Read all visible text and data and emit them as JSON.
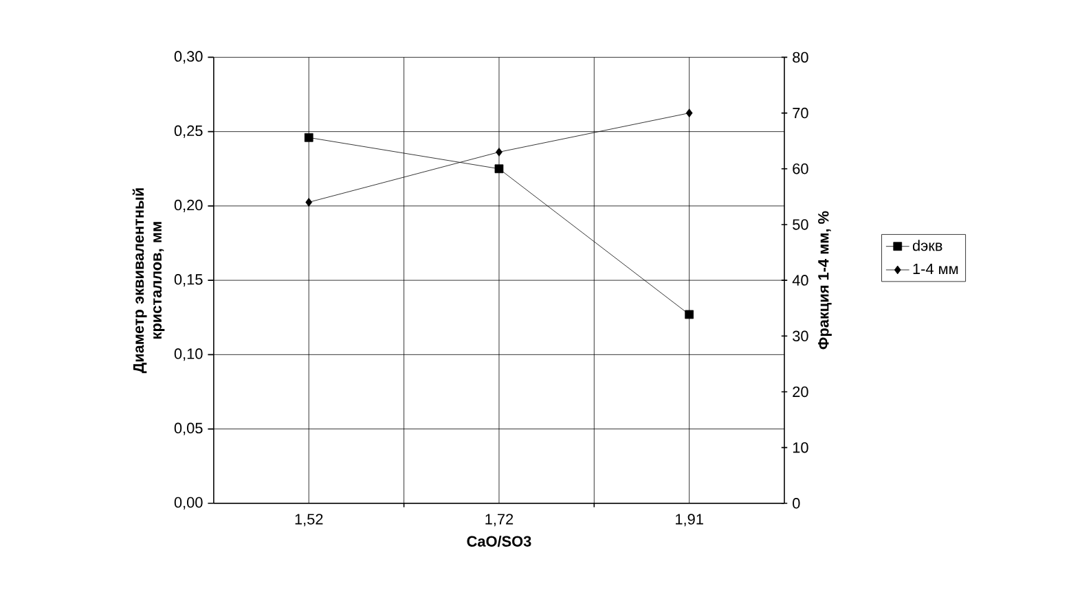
{
  "chart_data": {
    "type": "line",
    "xlabel": "CaO/SO3",
    "ylabel": "Диаметр эквивалентный кристаллов, мм",
    "y2label": "Фракция 1-4 мм, %",
    "categories": [
      "1,52",
      "1,72",
      "1,91"
    ],
    "series": [
      {
        "name": "dэкв",
        "color": "#000000",
        "marker": "square",
        "values": [
          0.246,
          0.225,
          0.127
        ]
      },
      {
        "name": "1-4 мм",
        "color": "#000000",
        "marker": "diamond",
        "axis": "y2",
        "values": [
          54,
          63,
          70
        ]
      }
    ],
    "ylim": [
      0,
      0.3
    ],
    "yticks": [
      {
        "value": 0,
        "label": "0,00"
      },
      {
        "value": 0.05,
        "label": "0,05"
      },
      {
        "value": 0.1,
        "label": "0,10"
      },
      {
        "value": 0.15,
        "label": "0,15"
      },
      {
        "value": 0.2,
        "label": "0,20"
      },
      {
        "value": 0.25,
        "label": "0,25"
      },
      {
        "value": 0.3,
        "label": "0,30"
      }
    ],
    "y2lim": [
      0,
      80
    ],
    "y2ticks": [
      0,
      10,
      20,
      30,
      40,
      50,
      60,
      70,
      80
    ],
    "grid": true,
    "legend": "right",
    "line_style": "solid"
  }
}
